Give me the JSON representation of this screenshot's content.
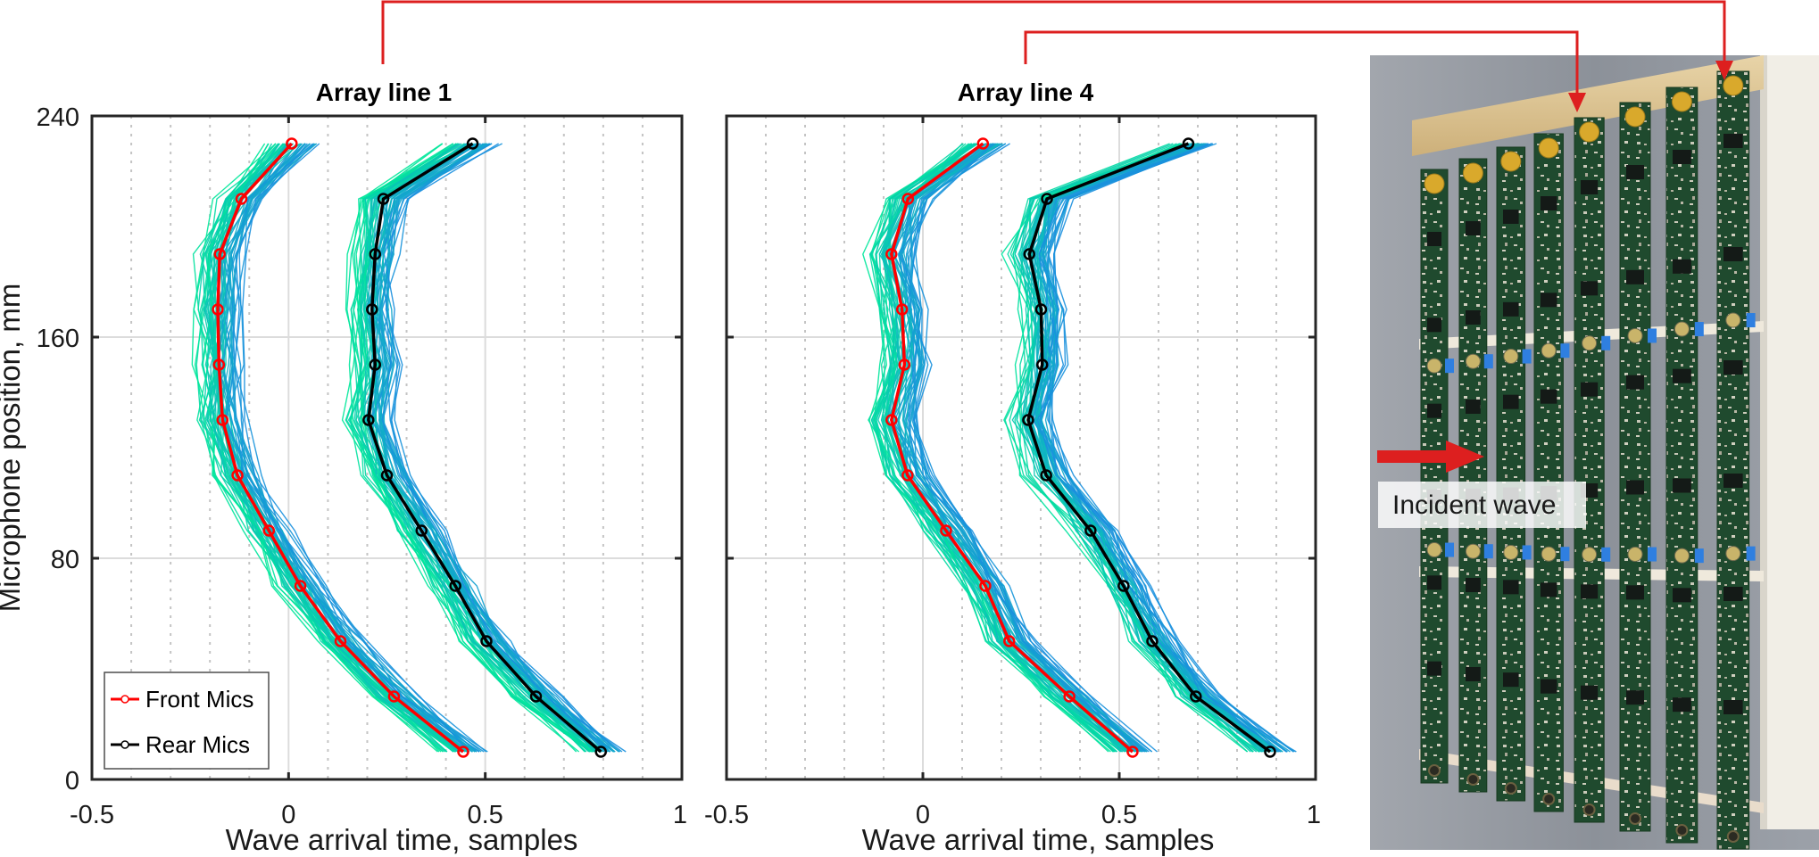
{
  "chart_data": [
    {
      "type": "line",
      "title": "Array line 1",
      "xlabel": "Wave arrival  time, samples",
      "ylabel": "Microphone position, mm",
      "xlim": [
        -0.5,
        1
      ],
      "ylim": [
        0,
        240
      ],
      "xticks": [
        "-0.5",
        "0",
        "0.5",
        "1"
      ],
      "yticks": [
        "0",
        "80",
        "160",
        "240"
      ],
      "grid": true,
      "legend": {
        "placement": "bottom-left",
        "entries": [
          "Front Mics",
          "Rear Mics"
        ]
      },
      "y": [
        230,
        210,
        190,
        170,
        150,
        130,
        110,
        90,
        70,
        50,
        30,
        10
      ],
      "series": [
        {
          "name": "Front Mics",
          "color": "#ff0000",
          "values": [
            0.008,
            -0.12,
            -0.175,
            -0.18,
            -0.177,
            -0.168,
            -0.13,
            -0.05,
            0.03,
            0.132,
            0.268,
            0.444
          ]
        },
        {
          "name": "Rear Mics",
          "color": "#000000",
          "values": [
            0.468,
            0.241,
            0.22,
            0.212,
            0.22,
            0.203,
            0.25,
            0.338,
            0.424,
            0.503,
            0.629,
            0.794
          ]
        }
      ]
    },
    {
      "type": "line",
      "title": "Array line 4",
      "xlabel": "Wave arrival  time, samples",
      "xlim": [
        -0.5,
        1
      ],
      "ylim": [
        0,
        240
      ],
      "xticks": [
        "-0.5",
        "0",
        "0.5",
        "1"
      ],
      "grid": true,
      "y": [
        230,
        210,
        190,
        170,
        150,
        130,
        110,
        90,
        70,
        50,
        30,
        10
      ],
      "series": [
        {
          "name": "Front Mics",
          "color": "#ff0000",
          "values": [
            0.153,
            -0.038,
            -0.08,
            -0.053,
            -0.047,
            -0.08,
            -0.039,
            0.059,
            0.159,
            0.22,
            0.373,
            0.534
          ]
        },
        {
          "name": "Rear Mics",
          "color": "#000000",
          "values": [
            0.676,
            0.316,
            0.271,
            0.301,
            0.304,
            0.268,
            0.314,
            0.427,
            0.511,
            0.584,
            0.695,
            0.884
          ]
        }
      ]
    }
  ],
  "photo": {
    "label": "Incident wave",
    "annotation_color": "#dd1f1f",
    "board_color": "#1f4a2e",
    "background_color": "#8e939c"
  },
  "spread_colors": [
    "#00e89a",
    "#1a8de0"
  ]
}
